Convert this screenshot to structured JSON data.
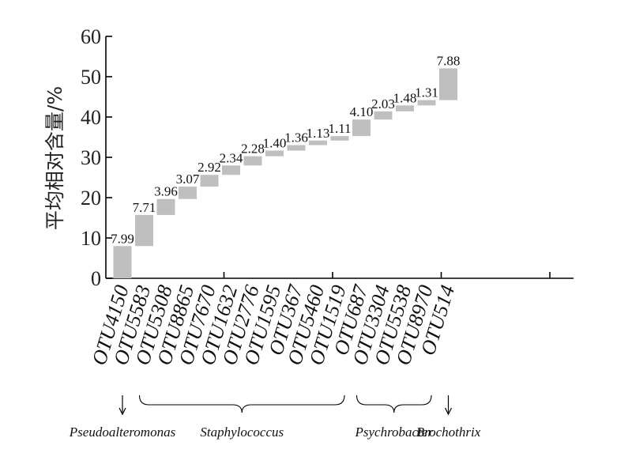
{
  "chart_data": {
    "type": "bar",
    "subtype": "waterfall",
    "ylabel": "平均相对含量/%",
    "ylim": [
      0,
      60
    ],
    "yticks": [
      "0",
      "10",
      "20",
      "30",
      "40",
      "50",
      "60"
    ],
    "grid": false,
    "bar_color": "#bfbfbf",
    "categories": [
      "OTU4150",
      "OTU5583",
      "OTU5308",
      "OTU8865",
      "OTU7670",
      "OTU1632",
      "OTU2776",
      "OTU1595",
      "OTU367",
      "OTU5460",
      "OTU1519",
      "OTU687",
      "OTU3304",
      "OTU5538",
      "OTU8970",
      "OTU514"
    ],
    "values": [
      7.99,
      7.71,
      3.96,
      3.07,
      2.92,
      2.34,
      2.28,
      1.4,
      1.36,
      1.13,
      1.11,
      4.1,
      2.03,
      1.48,
      1.31,
      7.88
    ],
    "value_labels": [
      "7.99",
      "7.71",
      "3.96",
      "3.07",
      "2.92",
      "2.34",
      "2.28",
      "1.40",
      "1.36",
      "1.13",
      "1.11",
      "4.10",
      "2.03",
      "1.48",
      "1.31",
      "7.88"
    ],
    "groups": [
      {
        "name": "Pseudoalteromonas",
        "from": 0,
        "to": 0,
        "style": "arrow"
      },
      {
        "name": "Staphylococcus",
        "from": 1,
        "to": 10,
        "style": "brace"
      },
      {
        "name": "Psychrobacter",
        "from": 11,
        "to": 14,
        "style": "brace"
      },
      {
        "name": "Brochothrix",
        "from": 15,
        "to": 15,
        "style": "arrow"
      }
    ]
  }
}
